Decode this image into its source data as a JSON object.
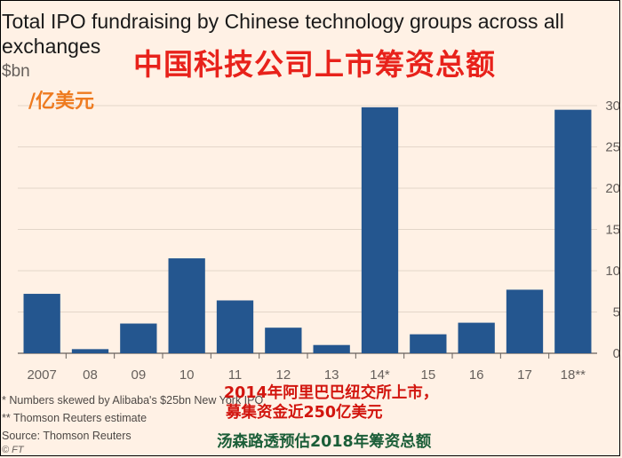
{
  "chart_data": {
    "type": "bar",
    "title": "Total IPO fundraising by Chinese technology groups across all exchanges",
    "ylabel": "$bn",
    "categories": [
      "2007",
      "08",
      "09",
      "10",
      "11",
      "12",
      "13",
      "14*",
      "15",
      "16",
      "17",
      "18**"
    ],
    "values": [
      7.2,
      0.5,
      3.6,
      11.5,
      6.4,
      3.1,
      1.0,
      29.8,
      2.3,
      3.7,
      7.7,
      29.5
    ],
    "ylim": [
      0,
      30
    ],
    "yticks": [
      0,
      5,
      10,
      15,
      20,
      25,
      30
    ],
    "yaxis_side": "right",
    "grid": true,
    "bar_color": "#24568f",
    "notes": [
      "* Numbers skewed by Alibaba's $25bn New York IPO",
      "** Thomson Reuters estimate",
      "Source: Thomson Reuters"
    ],
    "credit": "© FT"
  },
  "overlay": {
    "cn_title": "中国科技公司上市筹资总额",
    "cn_unit": "/亿美元",
    "cn_note_line1": "2014年阿里巴巴纽交所上市，",
    "cn_note_line2": "募集资金近250亿美元",
    "cn_note_line3": "汤森路透预估2018年筹资总额",
    "title_color": "#e8221b",
    "unit_color": "#ee7a1f",
    "note_color": "#d2150e",
    "note2_color": "#1b5e38"
  }
}
